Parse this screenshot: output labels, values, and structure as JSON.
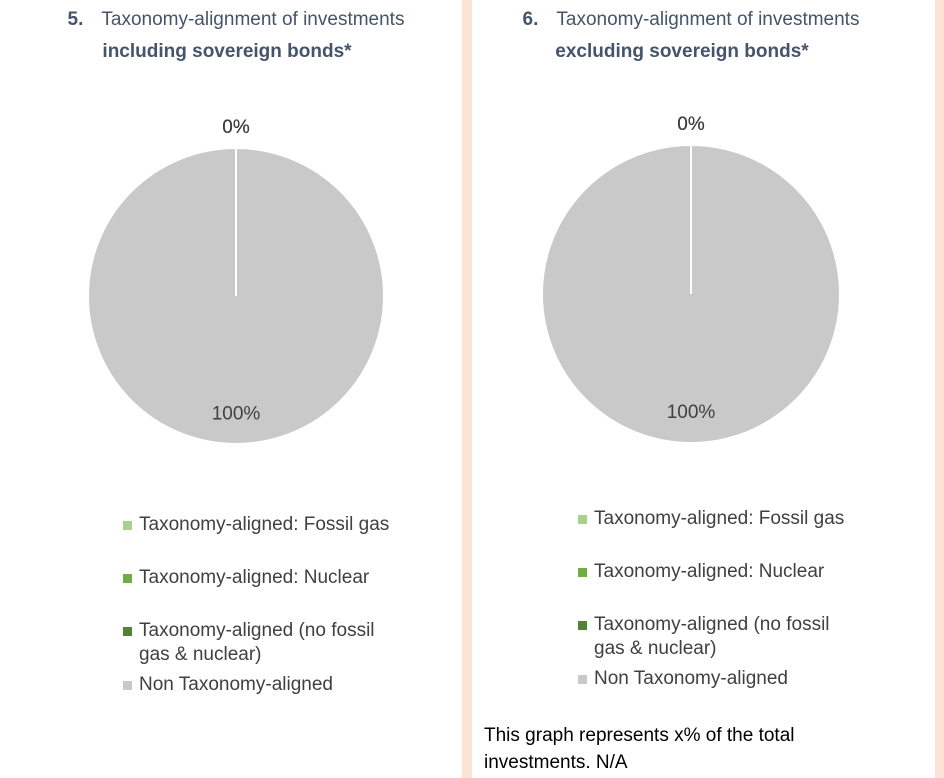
{
  "chart_data": [
    {
      "type": "pie",
      "number": "5.",
      "title": "Taxonomy-alignment of investments",
      "title_emphasis": "including sovereign bonds*",
      "categories": [
        "Taxonomy-aligned: Fossil gas",
        "Taxonomy-aligned: Nuclear",
        "Taxonomy-aligned (no fossil gas & nuclear)",
        "Non Taxonomy-aligned"
      ],
      "values": [
        0,
        0,
        0,
        100
      ],
      "value_labels": [
        "0%",
        "0%",
        "0%",
        "100%"
      ],
      "colors": [
        "#a9d18e",
        "#70ad47",
        "#548235",
        "#c9c9c9"
      ]
    },
    {
      "type": "pie",
      "number": "6.",
      "title": "Taxonomy-alignment of investments",
      "title_emphasis": "excluding sovereign bonds*",
      "categories": [
        "Taxonomy-aligned: Fossil gas",
        "Taxonomy-aligned: Nuclear",
        "Taxonomy-aligned (no fossil gas & nuclear)",
        "Non Taxonomy-aligned"
      ],
      "values": [
        0,
        0,
        0,
        100
      ],
      "value_labels": [
        "0%",
        "0%",
        "0%",
        "100%"
      ],
      "colors": [
        "#a9d18e",
        "#70ad47",
        "#548235",
        "#c9c9c9"
      ],
      "note": "This graph represents x% of the total investments.  N/A"
    }
  ]
}
